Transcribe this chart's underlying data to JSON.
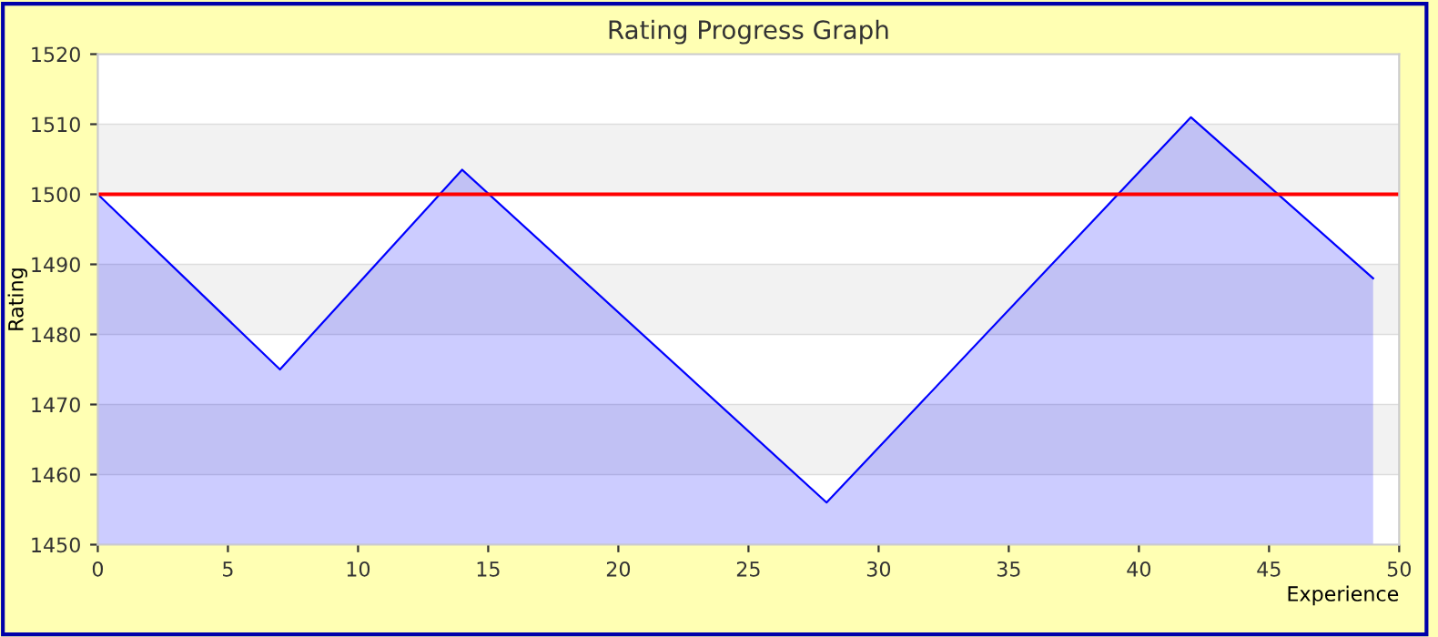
{
  "chart_data": {
    "type": "area",
    "title": "Rating Progress Graph",
    "xlabel": "Experience",
    "ylabel": "Rating",
    "x": [
      0,
      7,
      14,
      28,
      42,
      49
    ],
    "series": [
      {
        "color": "#0000ff",
        "values": [
          1500,
          1475,
          1503.5,
          1456,
          1511,
          1488
        ]
      }
    ],
    "xlim": [
      0,
      50
    ],
    "xticks": [
      0,
      5,
      10,
      15,
      20,
      25,
      30,
      35,
      40,
      45,
      50
    ],
    "ylim": [
      1450,
      1520
    ],
    "yticks": [
      1450,
      1460,
      1470,
      1480,
      1490,
      1500,
      1510,
      1520
    ],
    "grid": "y",
    "ref_lines": [
      {
        "axis": "y",
        "value": 1500,
        "color": "#ff0000"
      }
    ]
  }
}
